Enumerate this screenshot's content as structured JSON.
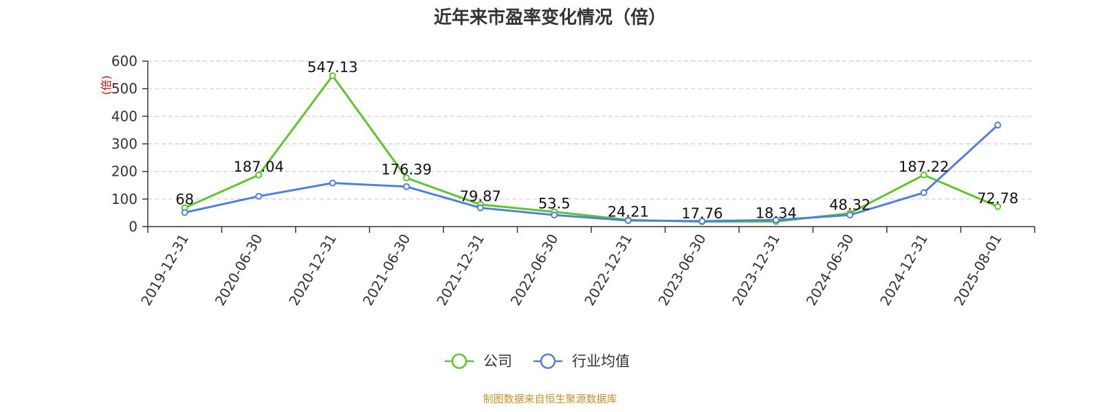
{
  "chart_data": {
    "type": "line",
    "title": "近年来市盈率变化情况（倍）",
    "ylabel": "(倍)",
    "xlabel": "",
    "categories": [
      "2019-12-31",
      "2020-06-30",
      "2020-12-31",
      "2021-06-30",
      "2021-12-31",
      "2022-06-30",
      "2022-12-31",
      "2023-06-30",
      "2023-12-31",
      "2024-06-30",
      "2024-12-31",
      "2025-08-01"
    ],
    "yticks": [
      0,
      100,
      200,
      300,
      400,
      500,
      600
    ],
    "ylim": [
      0,
      600
    ],
    "grid": true,
    "legend_position": "bottom-center",
    "series": [
      {
        "name": "公司",
        "color": "#5cc529",
        "values": [
          68,
          187.04,
          547.13,
          176.39,
          79.87,
          53.5,
          24.21,
          17.76,
          18.34,
          48.32,
          187.22,
          72.78
        ],
        "labels": [
          "68",
          "187.04",
          "547.13",
          "176.39",
          "79.87",
          "53.5",
          "24.21",
          "17.76",
          "18.34",
          "48.32",
          "187.22",
          "72.78"
        ]
      },
      {
        "name": "行业均值",
        "color": "#4e7fdb",
        "values": [
          51,
          110,
          158,
          145,
          68,
          42,
          22,
          20,
          24,
          42,
          123,
          368
        ]
      }
    ],
    "source": "制图数据来自恒生聚源数据库"
  }
}
